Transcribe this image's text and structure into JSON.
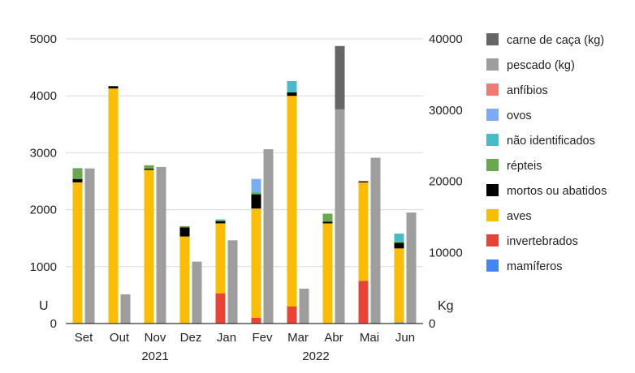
{
  "chart_data": {
    "type": "bar",
    "title": "",
    "categories": [
      "Set",
      "Out",
      "Nov",
      "Dez",
      "Jan",
      "Fev",
      "Mar",
      "Abr",
      "Mai",
      "Jun"
    ],
    "year_labels": [
      "2021",
      "2022"
    ],
    "left_axis": {
      "label": "U",
      "ylim": [
        0,
        5000
      ],
      "ticks": [
        "0",
        "1000",
        "2000",
        "3000",
        "4000",
        "5000"
      ]
    },
    "right_axis": {
      "label": "Kg",
      "ylim": [
        0,
        40000
      ],
      "ticks": [
        "0",
        "10000",
        "20000",
        "30000",
        "40000"
      ]
    },
    "units_series": [
      {
        "name": "mamíferos",
        "color": "#4285f4",
        "values": [
          0,
          0,
          0,
          0,
          0,
          0,
          0,
          0,
          0,
          20
        ]
      },
      {
        "name": "invertebrados",
        "color": "#ea4335",
        "values": [
          0,
          0,
          0,
          0,
          530,
          100,
          300,
          0,
          750,
          0
        ]
      },
      {
        "name": "aves",
        "color": "#fbbc04",
        "values": [
          2480,
          4130,
          2700,
          1530,
          1230,
          1920,
          3700,
          1760,
          1730,
          1300
        ]
      },
      {
        "name": "mortos ou abatidos",
        "color": "#000000",
        "values": [
          60,
          40,
          20,
          160,
          40,
          250,
          60,
          30,
          20,
          100
        ]
      },
      {
        "name": "répteis",
        "color": "#6aa84f",
        "values": [
          190,
          0,
          60,
          20,
          10,
          30,
          0,
          140,
          0,
          20
        ]
      },
      {
        "name": "não identificados",
        "color": "#46bdc6",
        "values": [
          0,
          0,
          0,
          0,
          20,
          20,
          200,
          0,
          0,
          140
        ]
      },
      {
        "name": "ovos",
        "color": "#7baaf7",
        "values": [
          0,
          0,
          0,
          0,
          0,
          220,
          0,
          0,
          0,
          0
        ]
      },
      {
        "name": "anfíbios",
        "color": "#f07b72",
        "values": [
          0,
          0,
          0,
          0,
          0,
          0,
          0,
          0,
          0,
          0
        ]
      }
    ],
    "kg_series": [
      {
        "name": "pescado (kg)",
        "color": "#9e9e9e",
        "values": [
          21800,
          4100,
          22000,
          8700,
          11700,
          24500,
          4900,
          30100,
          23300,
          15600
        ]
      },
      {
        "name": "carne de caça (kg)",
        "color": "#666666",
        "values": [
          0,
          0,
          0,
          0,
          0,
          0,
          0,
          8900,
          0,
          0
        ]
      }
    ],
    "legend": [
      "carne de caça (kg)",
      "pescado (kg)",
      "anfíbios",
      "ovos",
      "não identificados",
      "répteis",
      "mortos ou abatidos",
      "aves",
      "invertebrados",
      "mamíferos"
    ],
    "legend_colors": [
      "#666666",
      "#9e9e9e",
      "#f07b72",
      "#7baaf7",
      "#46bdc6",
      "#6aa84f",
      "#000000",
      "#fbbc04",
      "#ea4335",
      "#4285f4"
    ],
    "gridlines": true,
    "legend_position": "right"
  }
}
